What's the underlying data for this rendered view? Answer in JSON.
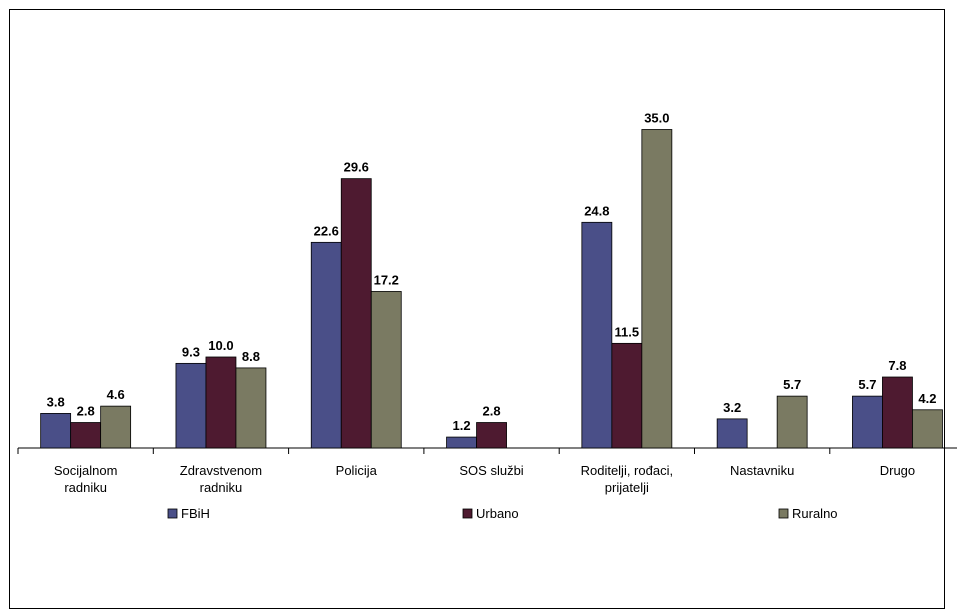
{
  "chart_data": {
    "type": "bar",
    "categories": [
      [
        "Socijalnom",
        "radniku"
      ],
      [
        "Zdravstvenom",
        "radniku"
      ],
      [
        "Policija"
      ],
      [
        "SOS službi"
      ],
      [
        "Roditelji, rođaci,",
        "prijatelji"
      ],
      [
        "Nastavniku"
      ],
      [
        "Drugo"
      ]
    ],
    "series": [
      {
        "name": "FBiH",
        "color": "#4a4f88",
        "values": [
          3.8,
          9.3,
          22.6,
          1.2,
          24.8,
          3.2,
          5.7
        ],
        "labels": [
          "3.8",
          "9.3",
          "22.6",
          "1.2",
          "24.8",
          "3.2",
          "5.7"
        ]
      },
      {
        "name": "Urbano",
        "color": "#4e1a30",
        "values": [
          2.8,
          10.0,
          29.6,
          2.8,
          11.5,
          null,
          7.8
        ],
        "labels": [
          "2.8",
          "10.0",
          "29.6",
          "2.8",
          "11.5",
          null,
          "7.8"
        ]
      },
      {
        "name": "Ruralno",
        "color": "#7a7a62",
        "values": [
          4.6,
          8.8,
          17.2,
          null,
          35.0,
          5.7,
          4.2
        ],
        "labels": [
          "4.6",
          "8.8",
          "17.2",
          null,
          "35.0",
          "5.7",
          "4.2"
        ]
      }
    ],
    "ylim": [
      0,
      40
    ],
    "grid": false,
    "legend_position": "bottom"
  }
}
